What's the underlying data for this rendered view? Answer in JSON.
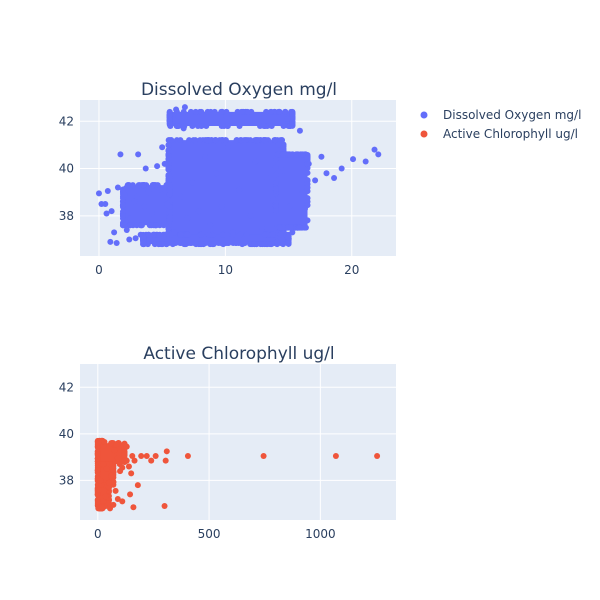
{
  "chart_data": [
    {
      "type": "scatter",
      "title": "Dissolved Oxygen mg/l",
      "xlabel": "",
      "ylabel": "",
      "color": "#636efa",
      "xlim": [
        -1.5,
        23.5
      ],
      "ylim": [
        36.3,
        42.9
      ],
      "x_ticks": [
        0,
        10,
        20
      ],
      "y_ticks": [
        38,
        40,
        42
      ],
      "grid": true,
      "points": [
        [
          0,
          38.95
        ],
        [
          0.2,
          38.5
        ],
        [
          0.5,
          38.5
        ],
        [
          0.7,
          39.05
        ],
        [
          1,
          38.2
        ],
        [
          1.2,
          37.3
        ],
        [
          1.5,
          39.2
        ],
        [
          1.7,
          40.6
        ],
        [
          2,
          38.9
        ],
        [
          2.2,
          37.4
        ],
        [
          2.5,
          37.9
        ],
        [
          2.8,
          38.6
        ],
        [
          0.9,
          36.9
        ],
        [
          1.4,
          36.85
        ],
        [
          2.4,
          37.0
        ],
        [
          0.6,
          38.1
        ],
        [
          3,
          38.8
        ],
        [
          3.3,
          37.2
        ],
        [
          3.6,
          38.4
        ],
        [
          3.9,
          39.0
        ],
        [
          2.9,
          37.05
        ],
        [
          3.4,
          37.6
        ],
        [
          3.7,
          40.0
        ],
        [
          3.1,
          40.6
        ],
        [
          4.2,
          38.1
        ],
        [
          4.5,
          37.6
        ],
        [
          4.8,
          39.1
        ],
        [
          5.1,
          37.1
        ],
        [
          5.4,
          38.5
        ],
        [
          5.2,
          40.2
        ],
        [
          4.6,
          40.1
        ],
        [
          5.6,
          39.6
        ],
        [
          6.1,
          42.5
        ],
        [
          6.3,
          42.2
        ],
        [
          6.7,
          41.7
        ],
        [
          5.0,
          40.9
        ],
        [
          6.0,
          37.3
        ],
        [
          6.5,
          38.8
        ],
        [
          7.0,
          37.9
        ],
        [
          7.4,
          39.4
        ],
        [
          7.9,
          38.2
        ],
        [
          8.4,
          40.5
        ],
        [
          8.8,
          37.6
        ],
        [
          9.3,
          39.8
        ],
        [
          9.7,
          38.4
        ],
        [
          10.2,
          40.9
        ],
        [
          10.6,
          37.3
        ],
        [
          11.1,
          39.1
        ],
        [
          11.5,
          41.2
        ],
        [
          12.0,
          38.0
        ],
        [
          12.4,
          40.3
        ],
        [
          12.9,
          37.5
        ],
        [
          13.3,
          39.6
        ],
        [
          13.8,
          38.7
        ],
        [
          14.2,
          41.0
        ],
        [
          14.6,
          39.9
        ],
        [
          15.1,
          38.4
        ],
        [
          15.6,
          40.6
        ],
        [
          16.1,
          39.0
        ],
        [
          16.6,
          40.2
        ],
        [
          17.1,
          39.5
        ],
        [
          17.6,
          40.5
        ],
        [
          18.0,
          39.8
        ],
        [
          18.6,
          39.6
        ],
        [
          19.2,
          40.0
        ],
        [
          20.1,
          40.4
        ],
        [
          21.1,
          40.3
        ],
        [
          21.8,
          40.8
        ],
        [
          22.1,
          40.6
        ],
        [
          15.3,
          37.3
        ],
        [
          16.3,
          38.3
        ],
        [
          15.9,
          41.6
        ],
        [
          14.9,
          42.1
        ],
        [
          6.8,
          42.6
        ],
        [
          10.1,
          42.2
        ],
        [
          13.6,
          42.4
        ],
        [
          8.1,
          36.8
        ],
        [
          12.3,
          36.8
        ],
        [
          14.1,
          36.9
        ],
        [
          9.0,
          42.3
        ]
      ],
      "bands": [
        {
          "x": [
            5.6,
            15.3
          ],
          "y": [
            41.8,
            42.4
          ]
        },
        {
          "x": [
            5.5,
            14.6
          ],
          "y": [
            36.85,
            41.2
          ]
        },
        {
          "x": [
            1.9,
            5.6
          ],
          "y": [
            37.6,
            39.3
          ]
        },
        {
          "x": [
            3.5,
            15.0
          ],
          "y": [
            36.8,
            37.2
          ]
        },
        {
          "x": [
            14.0,
            16.5
          ],
          "y": [
            37.5,
            40.6
          ]
        }
      ]
    },
    {
      "type": "scatter",
      "title": "Active Chlorophyll ug/l",
      "xlabel": "",
      "ylabel": "",
      "color": "#ef553b",
      "xlim": [
        -80,
        1340
      ],
      "ylim": [
        36.3,
        43.0
      ],
      "x_ticks": [
        0,
        500,
        1000
      ],
      "y_ticks": [
        38,
        40,
        42
      ],
      "grid": true,
      "points": [
        [
          405,
          39.05
        ],
        [
          745,
          39.05
        ],
        [
          1070,
          39.05
        ],
        [
          1255,
          39.05
        ],
        [
          310,
          39.25
        ],
        [
          305,
          38.85
        ],
        [
          260,
          39.05
        ],
        [
          240,
          38.85
        ],
        [
          220,
          39.05
        ],
        [
          195,
          39.05
        ],
        [
          180,
          37.8
        ],
        [
          165,
          38.85
        ],
        [
          155,
          39.05
        ],
        [
          145,
          37.4
        ],
        [
          140,
          38.6
        ],
        [
          130,
          38.85
        ],
        [
          120,
          39.1
        ],
        [
          110,
          37.1
        ],
        [
          100,
          38.4
        ],
        [
          90,
          38.95
        ],
        [
          80,
          37.55
        ],
        [
          75,
          39.3
        ],
        [
          70,
          36.95
        ],
        [
          60,
          38.2
        ],
        [
          50,
          37.9
        ],
        [
          40,
          38.5
        ],
        [
          35,
          37.3
        ],
        [
          25,
          39.5
        ],
        [
          20,
          36.85
        ],
        [
          12,
          38.0
        ],
        [
          5,
          37.6
        ],
        [
          2,
          39.6
        ],
        [
          30,
          39.65
        ],
        [
          60,
          39.6
        ],
        [
          85,
          39.55
        ],
        [
          115,
          39.5
        ],
        [
          130,
          39.45
        ],
        [
          55,
          36.8
        ],
        [
          90,
          37.2
        ],
        [
          160,
          36.85
        ],
        [
          300,
          36.9
        ],
        [
          110,
          38.55
        ],
        [
          150,
          38.3
        ]
      ],
      "bands": [
        {
          "x": [
            0,
            22
          ],
          "y": [
            36.8,
            39.7
          ]
        },
        {
          "x": [
            0,
            120
          ],
          "y": [
            38.7,
            39.6
          ]
        },
        {
          "x": [
            0,
            70
          ],
          "y": [
            37.8,
            38.7
          ]
        },
        {
          "x": [
            0,
            50
          ],
          "y": [
            36.9,
            37.8
          ]
        }
      ]
    }
  ],
  "legend": {
    "items": [
      {
        "label": "Dissolved Oxygen mg/l",
        "color": "#636efa"
      },
      {
        "label": "Active Chlorophyll ug/l",
        "color": "#ef553b"
      }
    ]
  }
}
